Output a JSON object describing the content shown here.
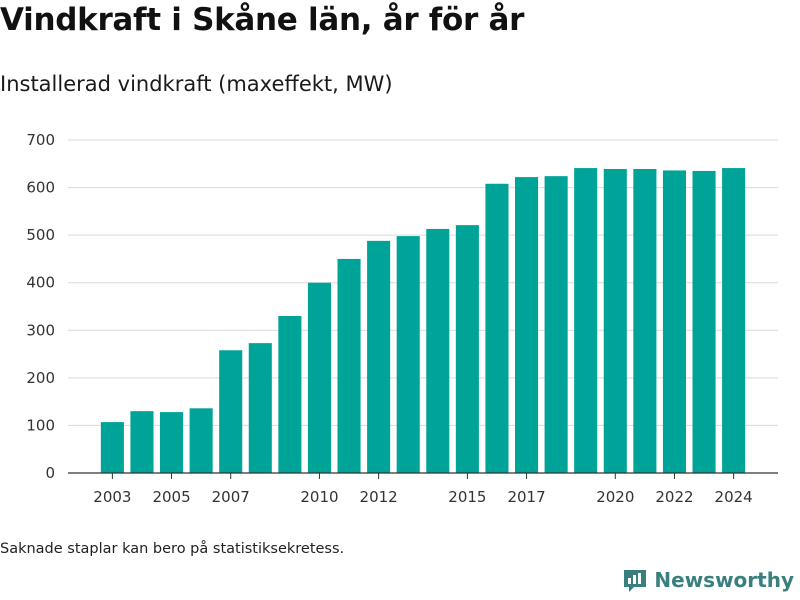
{
  "title": "Vindkraft i Skåne län, år för år",
  "subtitle": "Installerad vindkraft (maxeffekt, MW)",
  "footnote": "Saknade staplar kan bero på statistiksekretess.",
  "brand": {
    "name": "Newsworthy",
    "logo_icon": "bar-chart-logo-icon",
    "color": "#3a7f7f"
  },
  "chart_data": {
    "type": "bar",
    "title": "Vindkraft i Skåne län, år för år",
    "subtitle": "Installerad vindkraft (maxeffekt, MW)",
    "xlabel": "",
    "ylabel": "",
    "color": "#00a398",
    "grid": true,
    "ylim": [
      0,
      700
    ],
    "yticks": [
      0,
      100,
      200,
      300,
      400,
      500,
      600,
      700
    ],
    "xticks": [
      2003,
      2005,
      2007,
      2010,
      2012,
      2015,
      2017,
      2020,
      2022,
      2024
    ],
    "xlim": [
      2001.5,
      2025.5
    ],
    "categories": [
      2003,
      2004,
      2005,
      2006,
      2007,
      2008,
      2009,
      2010,
      2011,
      2012,
      2013,
      2014,
      2015,
      2016,
      2017,
      2018,
      2019,
      2020,
      2021,
      2022,
      2023,
      2024
    ],
    "values": [
      107,
      130,
      128,
      136,
      258,
      273,
      330,
      400,
      450,
      488,
      498,
      513,
      521,
      608,
      622,
      624,
      641,
      639,
      639,
      636,
      635,
      641
    ]
  }
}
